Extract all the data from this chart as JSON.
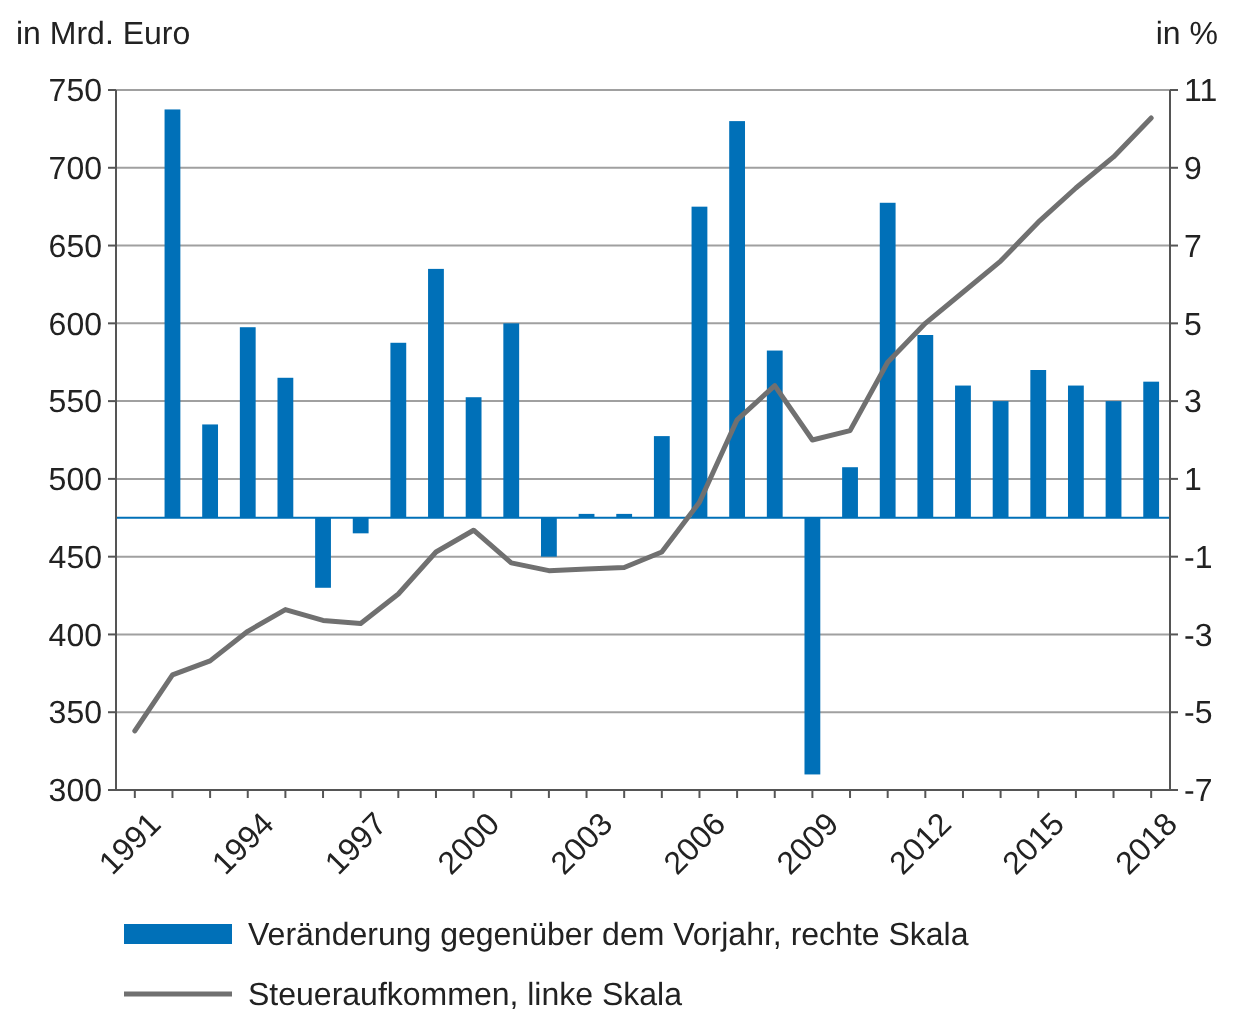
{
  "chart_data": {
    "type": "bar",
    "ylabel": "in Mrd. Euro",
    "y2label": "in %",
    "xlim": [
      1990.5,
      2018.5
    ],
    "xticks": [
      1991,
      {
        "value": 1992,
        "label": null
      },
      {
        "value": 1993,
        "label": null
      },
      1994,
      {
        "value": 1995,
        "label": null
      },
      {
        "value": 1996,
        "label": null
      },
      1997,
      {
        "value": 1998,
        "label": null
      },
      {
        "value": 1999,
        "label": null
      },
      2000,
      {
        "value": 2001,
        "label": null
      },
      {
        "value": 2002,
        "label": null
      },
      2003,
      {
        "value": 2004,
        "label": null
      },
      {
        "value": 2005,
        "label": null
      },
      2006,
      {
        "value": 2007,
        "label": null
      },
      {
        "value": 2008,
        "label": null
      },
      2009,
      {
        "value": 2010,
        "label": null
      },
      {
        "value": 2011,
        "label": null
      },
      2012,
      {
        "value": 2013,
        "label": null
      },
      {
        "value": 2014,
        "label": null
      },
      2015,
      {
        "value": 2016,
        "label": null
      },
      {
        "value": 2017,
        "label": null
      },
      2018
    ],
    "ylim": [
      300,
      750
    ],
    "yticks": [
      300,
      350,
      400,
      450,
      500,
      550,
      600,
      650,
      700,
      750
    ],
    "y2lim": [
      -7,
      11
    ],
    "y2ticks": [
      -7,
      -5,
      -3,
      -1,
      1,
      3,
      5,
      7,
      9,
      11
    ],
    "grid": "y",
    "legend": "bottom",
    "ref_lines": [
      {
        "axis": "y2",
        "value": 0,
        "color": "#0070b8"
      }
    ],
    "series": [
      {
        "name": "Veränderung gegenüber dem Vorjahr, rechte Skala",
        "axis": "y2",
        "color": "#0070b8",
        "x": [
          1992,
          1993,
          1994,
          1995,
          1996,
          1997,
          1998,
          1999,
          2000,
          2001,
          2002,
          2003,
          2004,
          2005,
          2006,
          2007,
          2008,
          2009,
          2010,
          2011,
          2012,
          2013,
          2014,
          2015,
          2016,
          2017,
          2018
        ],
        "values": [
          10.5,
          2.4,
          4.9,
          3.6,
          -1.8,
          -0.4,
          4.5,
          6.4,
          3.1,
          5.0,
          -1.0,
          0.1,
          0.1,
          2.1,
          8.0,
          10.2,
          4.3,
          -6.6,
          1.3,
          8.1,
          4.7,
          3.4,
          3.0,
          3.8,
          3.4,
          3.0,
          3.5
        ]
      },
      {
        "name": "Steueraufkommen, linke Skala",
        "type": "line",
        "color": "#707070",
        "x": [
          1991,
          1992,
          1993,
          1994,
          1995,
          1996,
          1997,
          1998,
          1999,
          2000,
          2001,
          2002,
          2003,
          2004,
          2005,
          2006,
          2007,
          2008,
          2009,
          2010,
          2011,
          2012,
          2013,
          2014,
          2015,
          2016,
          2017,
          2018
        ],
        "values": [
          338,
          374,
          383,
          402,
          416,
          409,
          407,
          426,
          453,
          467,
          446,
          441,
          442,
          443,
          453,
          485,
          538,
          560,
          525,
          531,
          575,
          600,
          620,
          640,
          665,
          687,
          707,
          732
        ]
      }
    ]
  }
}
